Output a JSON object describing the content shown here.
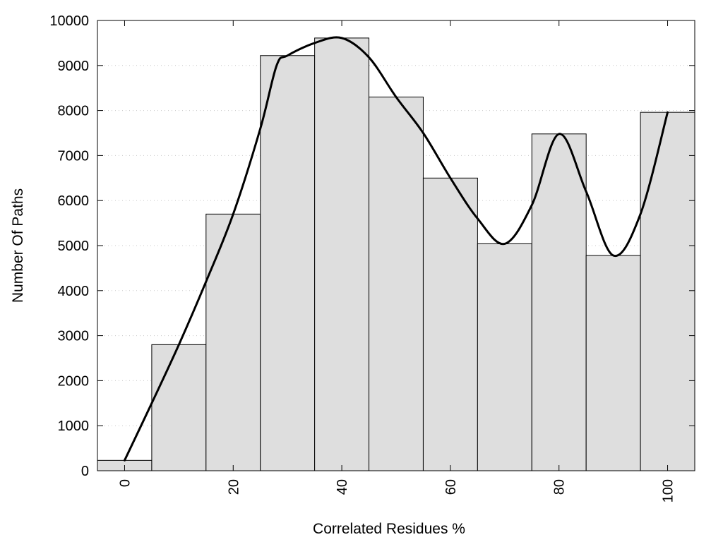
{
  "chart_data": {
    "type": "bar",
    "title": "",
    "xlabel": "Correlated Residues %",
    "ylabel": "Number Of Paths",
    "x": [
      0,
      10,
      20,
      30,
      40,
      50,
      60,
      70,
      80,
      90,
      100
    ],
    "values": [
      230,
      2800,
      5700,
      9220,
      9610,
      8300,
      6500,
      5040,
      7480,
      4780,
      7960
    ],
    "xlim": [
      -5,
      105
    ],
    "ylim": [
      0,
      10000
    ],
    "xticks": [
      0,
      20,
      40,
      60,
      80,
      100
    ],
    "yticks": [
      0,
      1000,
      2000,
      3000,
      4000,
      5000,
      6000,
      7000,
      8000,
      9000,
      10000
    ],
    "grid": "horizontal dotted",
    "smooth_curve": {
      "x": [
        0,
        5,
        10,
        15,
        20,
        25,
        28,
        30,
        35,
        40,
        45,
        50,
        55,
        60,
        65,
        70,
        75,
        80,
        85,
        90,
        95,
        100
      ],
      "y": [
        230,
        1500,
        2800,
        4200,
        5700,
        7600,
        9000,
        9220,
        9500,
        9610,
        9180,
        8300,
        7500,
        6500,
        5600,
        5040,
        5900,
        7480,
        6200,
        4780,
        5700,
        7960
      ]
    },
    "bar_color": "#dedede",
    "line_color": "#000000"
  }
}
